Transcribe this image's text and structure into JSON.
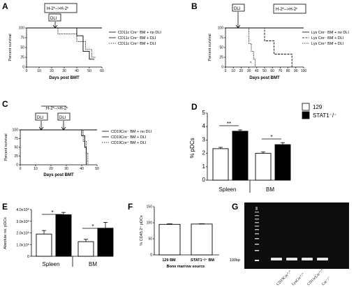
{
  "panels": {
    "A": {
      "label": "A",
      "cond": "H-2",
      "sup1": "b",
      "arrow": "-->",
      "cond2": "H-2",
      "sup2": "k",
      "dli": "DLI",
      "ylabel": "Percent survival",
      "xlabel": "Days post BMT",
      "xticks": [
        "0",
        "10",
        "20",
        "30",
        "40",
        "50",
        "60"
      ],
      "yticks": [
        "0",
        "25",
        "50",
        "75",
        "100"
      ],
      "legend": [
        "CD11c Cre⁻ BM + no DLI",
        "CD11c Cre⁻ BM + DLI",
        "CD11c Cre⁺ BM + DLI"
      ]
    },
    "B": {
      "label": "B",
      "cond": "H-2",
      "sup1": "b",
      "arrow": "-->",
      "cond2": "H-2",
      "sup2": "k",
      "dli": "DLI",
      "ylabel": "Percent survival",
      "xlabel": "Days post BMT",
      "star": "*",
      "xticks": [
        "0",
        "10",
        "20",
        "30",
        "40",
        "50",
        "60",
        "70",
        "80",
        "90",
        "100"
      ],
      "yticks": [
        "0",
        "25",
        "50",
        "75",
        "100"
      ],
      "legend": [
        "Lys Cre⁻ BM + no DLI",
        "Lys Cre⁻ BM + DLI",
        "Lys Cre⁺ BM + DLI"
      ]
    },
    "C": {
      "label": "C",
      "cond": "H-2",
      "sup1": "b",
      "arrow": "-->",
      "cond2": "H-2",
      "sup2": "k",
      "dli1": "DLI",
      "dli2": "DLI",
      "ylabel": "Percent survival",
      "xlabel": "Days post BMT",
      "xticks": [
        "0",
        "10",
        "20",
        "30",
        "40",
        "50"
      ],
      "yticks": [
        "0",
        "25",
        "50",
        "75",
        "100"
      ],
      "legend": [
        "CD19Cre⁻ BM + no DLI",
        "CD19Cre⁻ BM + DLI",
        "CD19Cre⁺ BM + DLI"
      ]
    },
    "D": {
      "label": "D",
      "ylabel": "% pDCs",
      "yticks": [
        "0",
        "1",
        "2",
        "3",
        "4",
        "5"
      ],
      "cats": [
        "Spleen",
        "BM"
      ],
      "sig1": "**",
      "sig2": "*",
      "legend": [
        "129",
        "STAT1⁻/⁻"
      ]
    },
    "E": {
      "label": "E",
      "ylabel": "Absolute no. pDCs",
      "yticks": [
        "0",
        "1.0x10⁶",
        "2.0x10⁶",
        "3.0x10⁶",
        "4.0x10⁶"
      ],
      "cats": [
        "Spleen",
        "BM"
      ],
      "sig1": "*",
      "sig2": "*"
    },
    "F": {
      "label": "F",
      "ylabel": "% CD45.2⁺ pDCs",
      "xlabel": "Bone marrow source",
      "yticks": [
        "0",
        "50",
        "100",
        "150"
      ],
      "cats": [
        "129 BM",
        "STAT1⁻/⁻ BM"
      ]
    },
    "G": {
      "label": "G",
      "marker": "100bp",
      "lanes": [
        "CD19Cre⁺/⁺",
        "LysCre⁺/⁺",
        "CD11cCre⁺/⁺",
        "Cre⁻/⁻"
      ]
    }
  },
  "colors": {
    "black": "#000000",
    "white": "#ffffff",
    "gel_bg": "#0d0d0d",
    "band": "#e6e6e6"
  },
  "chart_data": [
    {
      "panel": "A",
      "type": "line",
      "xlabel": "Days post BMT",
      "ylabel": "Percent survival",
      "xlim": [
        0,
        60
      ],
      "ylim": [
        0,
        100
      ],
      "dli_day": 20,
      "series": [
        {
          "name": "CD11c Cre⁻ BM + no DLI",
          "style": "solid",
          "x": [
            0,
            60
          ],
          "y": [
            100,
            100
          ]
        },
        {
          "name": "CD11c Cre⁻ BM + DLI",
          "style": "solid",
          "x": [
            0,
            40,
            40,
            45,
            45,
            50,
            50,
            54
          ],
          "y": [
            100,
            100,
            80,
            80,
            40,
            40,
            20,
            20
          ]
        },
        {
          "name": "CD11c Cre⁺ BM + DLI",
          "style": "dotted",
          "x": [
            0,
            25,
            25,
            40,
            40,
            47,
            47,
            52,
            52,
            55
          ],
          "y": [
            100,
            100,
            85,
            85,
            65,
            65,
            45,
            45,
            25,
            25
          ]
        }
      ]
    },
    {
      "panel": "B",
      "type": "line",
      "xlabel": "Days post BMT",
      "ylabel": "Percent survival",
      "xlim": [
        0,
        100
      ],
      "ylim": [
        0,
        100
      ],
      "dli_day": 14,
      "series": [
        {
          "name": "Lys Cre⁻ BM + no DLI",
          "style": "solid",
          "x": [
            0,
            100
          ],
          "y": [
            100,
            100
          ]
        },
        {
          "name": "Lys Cre⁻ BM + DLI",
          "style": "dashed",
          "x": [
            0,
            50,
            50,
            62,
            62,
            85,
            85
          ],
          "y": [
            100,
            100,
            67,
            67,
            33,
            33,
            0
          ]
        },
        {
          "name": "Lys Cre⁺ BM + DLI",
          "style": "dotted",
          "x": [
            0,
            30,
            30,
            33,
            33,
            36,
            36,
            38,
            38
          ],
          "y": [
            100,
            100,
            60,
            60,
            40,
            40,
            20,
            20,
            0
          ]
        }
      ]
    },
    {
      "panel": "C",
      "type": "line",
      "xlabel": "Days post BMT",
      "ylabel": "Percent survival",
      "xlim": [
        0,
        50
      ],
      "ylim": [
        0,
        100
      ],
      "dli_days": [
        14,
        28
      ],
      "series": [
        {
          "name": "CD19Cre⁻ BM + no DLI",
          "style": "solid",
          "x": [
            0,
            50
          ],
          "y": [
            100,
            100
          ]
        },
        {
          "name": "CD19Cre⁻ BM + DLI",
          "style": "solid",
          "x": [
            0,
            40,
            40,
            42,
            42,
            43,
            43
          ],
          "y": [
            100,
            100,
            83,
            83,
            50,
            50,
            0
          ]
        },
        {
          "name": "CD19Cre⁺ BM + DLI",
          "style": "dotted",
          "x": [
            0,
            41,
            41,
            43,
            43,
            44,
            44
          ],
          "y": [
            100,
            100,
            67,
            67,
            33,
            33,
            0
          ]
        }
      ]
    },
    {
      "panel": "D",
      "type": "bar",
      "ylabel": "% pDCs",
      "ylim": [
        0,
        5
      ],
      "categories": [
        "Spleen",
        "BM"
      ],
      "series": [
        {
          "name": "129",
          "values": [
            2.35,
            2.0
          ],
          "errors": [
            0.1,
            0.1
          ]
        },
        {
          "name": "STAT1⁻/⁻",
          "values": [
            3.65,
            2.65
          ],
          "errors": [
            0.1,
            0.15
          ]
        }
      ]
    },
    {
      "panel": "E",
      "type": "bar",
      "ylabel": "Absolute no. pDCs",
      "ylim": [
        0,
        4000000
      ],
      "categories": [
        "Spleen",
        "BM"
      ],
      "series": [
        {
          "name": "129",
          "values": [
            1900000,
            1250000
          ],
          "errors": [
            300000,
            200000
          ]
        },
        {
          "name": "STAT1⁻/⁻",
          "values": [
            3550000,
            2400000
          ],
          "errors": [
            200000,
            500000
          ]
        }
      ]
    },
    {
      "panel": "F",
      "type": "bar",
      "ylabel": "% CD45.2⁺ pDCs",
      "xlabel": "Bone marrow source",
      "ylim": [
        0,
        150
      ],
      "categories": [
        "129 BM",
        "STAT1⁻/⁻ BM"
      ],
      "series": [
        {
          "values": [
            95,
            96
          ],
          "errors": [
            2,
            1
          ]
        }
      ]
    }
  ]
}
